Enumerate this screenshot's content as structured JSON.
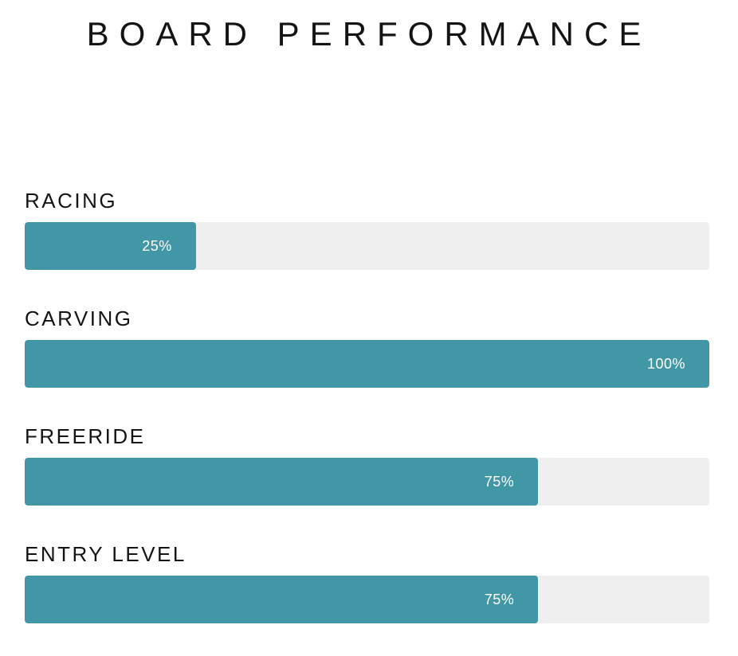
{
  "title": "BOARD PERFORMANCE",
  "colors": {
    "bar_fill": "#4197a6",
    "bar_track": "#efefef",
    "heading_text": "#141414",
    "value_text": "#ffffff",
    "background": "#ffffff"
  },
  "rows": [
    {
      "label": "RACING",
      "value": 25,
      "percent_label": "25%"
    },
    {
      "label": "CARVING",
      "value": 100,
      "percent_label": "100%"
    },
    {
      "label": "FREERIDE",
      "value": 75,
      "percent_label": "75%"
    },
    {
      "label": "ENTRY LEVEL",
      "value": 75,
      "percent_label": "75%"
    }
  ],
  "chart_data": {
    "type": "bar",
    "orientation": "horizontal",
    "title": "BOARD PERFORMANCE",
    "categories": [
      "RACING",
      "CARVING",
      "FREERIDE",
      "ENTRY LEVEL"
    ],
    "values": [
      25,
      100,
      75,
      75
    ],
    "value_labels": [
      "25%",
      "100%",
      "75%",
      "75%"
    ],
    "xlabel": "",
    "ylabel": "",
    "xlim": [
      0,
      100
    ],
    "unit": "%",
    "grid": false,
    "legend": false,
    "value_label_position": "inside-right",
    "bar_color": "#4197a6",
    "track_color": "#efefef"
  }
}
